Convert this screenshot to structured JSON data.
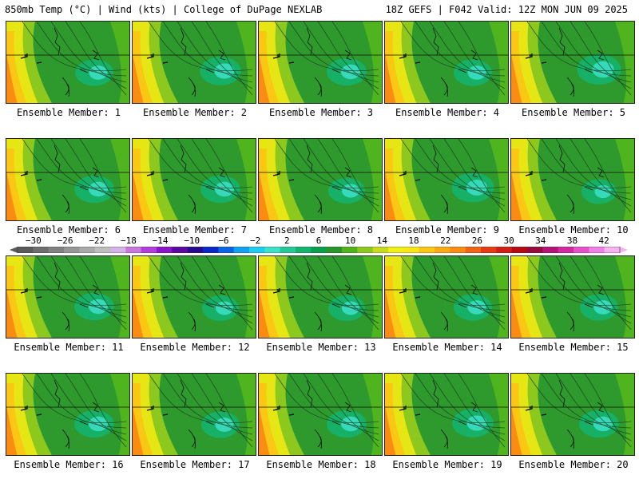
{
  "header": {
    "left": "850mb Temp (°C) | Wind (kts) | College of DuPage NEXLAB",
    "right": "18Z GEFS | F042 Valid: 12Z MON JUN 09 2025"
  },
  "panels": [
    {
      "member": 1,
      "label": "Ensemble Member: 1",
      "warm_core": 0.55
    },
    {
      "member": 2,
      "label": "Ensemble Member: 2",
      "warm_core": 0.65
    },
    {
      "member": 3,
      "label": "Ensemble Member: 3",
      "warm_core": 0.6
    },
    {
      "member": 4,
      "label": "Ensemble Member: 4",
      "warm_core": 0.55
    },
    {
      "member": 5,
      "label": "Ensemble Member: 5",
      "warm_core": 0.75
    },
    {
      "member": 6,
      "label": "Ensemble Member: 6",
      "warm_core": 0.6
    },
    {
      "member": 7,
      "label": "Ensemble Member: 7",
      "warm_core": 0.6
    },
    {
      "member": 8,
      "label": "Ensemble Member: 8",
      "warm_core": 0.5
    },
    {
      "member": 9,
      "label": "Ensemble Member: 9",
      "warm_core": 0.7
    },
    {
      "member": 10,
      "label": "Ensemble Member: 10",
      "warm_core": 0.45
    },
    {
      "member": 11,
      "label": "Ensemble Member: 11",
      "warm_core": 0.6
    },
    {
      "member": 12,
      "label": "Ensemble Member: 12",
      "warm_core": 0.5
    },
    {
      "member": 13,
      "label": "Ensemble Member: 13",
      "warm_core": 0.5
    },
    {
      "member": 14,
      "label": "Ensemble Member: 14",
      "warm_core": 0.55
    },
    {
      "member": 15,
      "label": "Ensemble Member: 15",
      "warm_core": 0.55
    },
    {
      "member": 16,
      "label": "Ensemble Member: 16",
      "warm_core": 0.6
    },
    {
      "member": 17,
      "label": "Ensemble Member: 17",
      "warm_core": 0.55
    },
    {
      "member": 18,
      "label": "Ensemble Member: 18",
      "warm_core": 0.6
    },
    {
      "member": 19,
      "label": "Ensemble Member: 19",
      "warm_core": 0.65
    },
    {
      "member": 20,
      "label": "Ensemble Member: 20",
      "warm_core": 0.6
    }
  ],
  "colorbar": {
    "min": -32,
    "max": 44,
    "ticks": [
      "-30",
      "-26",
      "-22",
      "-18",
      "-14",
      "-10",
      "-6",
      "-2",
      "2",
      "6",
      "10",
      "14",
      "18",
      "22",
      "26",
      "30",
      "34",
      "38",
      "42"
    ],
    "tick_values": [
      -30,
      -26,
      -22,
      -18,
      -14,
      -10,
      -6,
      -2,
      2,
      6,
      10,
      14,
      18,
      22,
      26,
      30,
      34,
      38,
      42
    ],
    "colors": [
      "#5a5a5a",
      "#6e6e6e",
      "#828282",
      "#969696",
      "#aaaaaa",
      "#bebebe",
      "#d2b4e6",
      "#c878dc",
      "#b43cdc",
      "#8c14c8",
      "#5a0aa0",
      "#280a8c",
      "#0a28c8",
      "#0a64e6",
      "#14a0f0",
      "#1ecdf0",
      "#3ce1c8",
      "#28c896",
      "#14b46e",
      "#0aa04b",
      "#289628",
      "#50b41e",
      "#8cc81e",
      "#c8dc1e",
      "#f0f014",
      "#fae614",
      "#fac814",
      "#faaa14",
      "#fa8c14",
      "#f06414",
      "#e63c14",
      "#d21e14",
      "#b40a14",
      "#960a3c",
      "#b41478",
      "#d228a0",
      "#e650c8",
      "#f080e6",
      "#f5b4f0"
    ]
  }
}
